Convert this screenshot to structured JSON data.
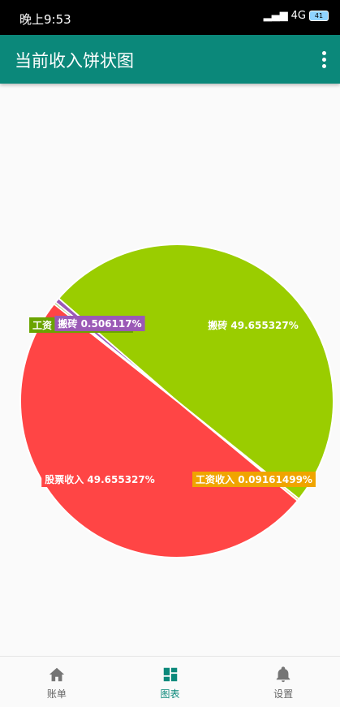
{
  "status_bar": {
    "time": "晚上9:53",
    "network": "4G",
    "battery": "41"
  },
  "app_bar": {
    "title": "当前收入饼状图"
  },
  "chart_data": {
    "type": "pie",
    "slices": [
      {
        "label": "搬砖 49.655327%",
        "value": 49.655327,
        "color": "#9acd00"
      },
      {
        "label": "工资收入 0.09161499%",
        "value": 0.09161499,
        "color": "#f0a400"
      },
      {
        "label": "股票收入 49.655327%",
        "value": 49.655327,
        "color": "#ff4545"
      },
      {
        "label": "工资 0.09161499%",
        "value": 0.09161499,
        "color": "#6aa400"
      },
      {
        "label": "搬砖 0.506117%",
        "value": 0.506117,
        "color": "#9b59b6"
      }
    ]
  },
  "bottom_nav": {
    "items": [
      {
        "label": "账单"
      },
      {
        "label": "图表"
      },
      {
        "label": "设置"
      }
    ]
  }
}
